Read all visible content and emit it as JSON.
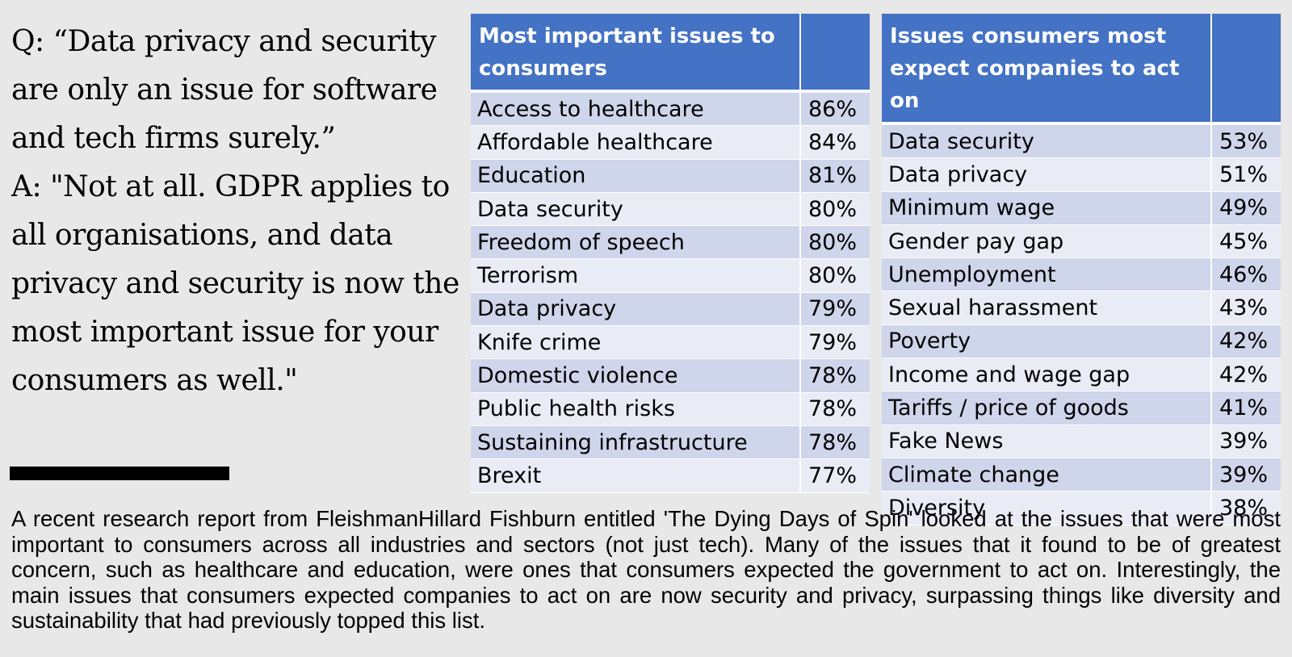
{
  "qa": {
    "question": "Q: “Data privacy and security are only an issue for software and tech firms surely.”",
    "answer": "A: \"Not at all. GDPR applies to all organisations, and data privacy and security is now the most important issue for your consumers as well.\""
  },
  "table_left": {
    "header": "Most important issues to consumers",
    "rows": [
      {
        "issue": "Access to healthcare",
        "pct": "86%"
      },
      {
        "issue": "Affordable healthcare",
        "pct": "84%"
      },
      {
        "issue": "Education",
        "pct": "81%"
      },
      {
        "issue": "Data security",
        "pct": "80%"
      },
      {
        "issue": "Freedom of speech",
        "pct": "80%"
      },
      {
        "issue": "Terrorism",
        "pct": "80%"
      },
      {
        "issue": "Data privacy",
        "pct": "79%"
      },
      {
        "issue": "Knife crime",
        "pct": "79%"
      },
      {
        "issue": "Domestic violence",
        "pct": "78%"
      },
      {
        "issue": "Public health risks",
        "pct": "78%"
      },
      {
        "issue": "Sustaining infrastructure",
        "pct": "78%"
      },
      {
        "issue": "Brexit",
        "pct": "77%"
      }
    ]
  },
  "table_right": {
    "header": "Issues consumers most expect companies to act on",
    "rows": [
      {
        "issue": "Data security",
        "pct": "53%"
      },
      {
        "issue": "Data privacy",
        "pct": "51%"
      },
      {
        "issue": "Minimum wage",
        "pct": "49%"
      },
      {
        "issue": "Gender pay gap",
        "pct": "45%"
      },
      {
        "issue": "Unemployment",
        "pct": "46%"
      },
      {
        "issue": "Sexual harassment",
        "pct": "43%"
      },
      {
        "issue": "Poverty",
        "pct": "42%"
      },
      {
        "issue": "Income and wage gap",
        "pct": "42%"
      },
      {
        "issue": "Tariffs / price of goods",
        "pct": "41%"
      },
      {
        "issue": "Fake News",
        "pct": "39%"
      },
      {
        "issue": "Climate change",
        "pct": "39%"
      },
      {
        "issue": "Diversity",
        "pct": "38%"
      }
    ]
  },
  "caption": "A recent research report from FleishmanHillard Fishburn entitled 'The Dying Days of Spin' looked at the issues that were most important to consumers across all industries and sectors (not just tech). Many of the issues that it found to be of greatest concern, such as healthcare and education, were ones that consumers expected the government to act on. Interestingly, the main issues that consumers expected companies to act on are now security and privacy, surpassing things like diversity and sustainability that had previously topped this list.",
  "colors": {
    "header_bg": "#4472c4",
    "row_odd": "#cfd5ea",
    "row_even": "#e9ebf5",
    "page_bg": "#e8e8e8"
  }
}
